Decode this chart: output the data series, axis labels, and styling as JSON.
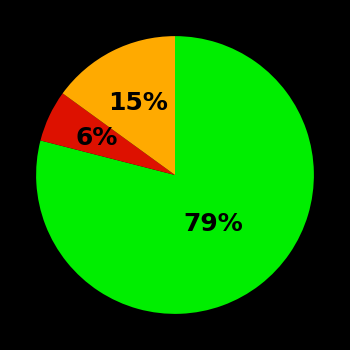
{
  "slices": [
    79,
    6,
    15
  ],
  "colors": [
    "#00ee00",
    "#dd1100",
    "#ffaa00"
  ],
  "labels": [
    "79%",
    "6%",
    "15%"
  ],
  "label_radii": [
    0.45,
    0.62,
    0.58
  ],
  "background_color": "#000000",
  "text_color": "#000000",
  "startangle": 90,
  "counterclock": false,
  "figsize": [
    3.5,
    3.5
  ],
  "dpi": 100,
  "fontsize": 18
}
